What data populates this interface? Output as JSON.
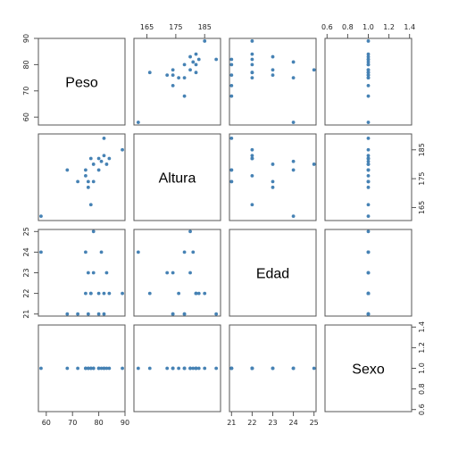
{
  "chart_data": {
    "type": "scatter",
    "subtype": "scatterplot-matrix",
    "point_color": "#4682b4",
    "variables": [
      {
        "name": "Peso",
        "range": [
          57,
          90
        ],
        "ticks": [
          60,
          70,
          80,
          90
        ],
        "tick_labels": [
          "60",
          "70",
          "80",
          "90"
        ]
      },
      {
        "name": "Altura",
        "range": [
          160.5,
          190.5
        ],
        "ticks": [
          165,
          175,
          185
        ],
        "tick_labels": [
          "165",
          "175",
          "185"
        ]
      },
      {
        "name": "Edad",
        "range": [
          20.9,
          25.1
        ],
        "ticks": [
          21,
          22,
          23,
          24,
          25
        ],
        "tick_labels": [
          "21",
          "22",
          "23",
          "24",
          "25"
        ]
      },
      {
        "name": "Sexo",
        "range": [
          0.58,
          1.42
        ],
        "ticks": [
          0.6,
          0.8,
          1.0,
          1.2,
          1.4
        ],
        "tick_labels": [
          "0.6",
          "0.8",
          "1.0",
          "1.2",
          "1.4"
        ]
      }
    ],
    "observations": [
      {
        "Peso": 58,
        "Altura": 162,
        "Edad": 24,
        "Sexo": 1
      },
      {
        "Peso": 68,
        "Altura": 178,
        "Edad": 21,
        "Sexo": 1
      },
      {
        "Peso": 72,
        "Altura": 174,
        "Edad": 21,
        "Sexo": 1
      },
      {
        "Peso": 75,
        "Altura": 176,
        "Edad": 22,
        "Sexo": 1
      },
      {
        "Peso": 75,
        "Altura": 178,
        "Edad": 24,
        "Sexo": 1
      },
      {
        "Peso": 76,
        "Altura": 172,
        "Edad": 23,
        "Sexo": 1
      },
      {
        "Peso": 76,
        "Altura": 174,
        "Edad": 21,
        "Sexo": 1
      },
      {
        "Peso": 77,
        "Altura": 166,
        "Edad": 22,
        "Sexo": 1
      },
      {
        "Peso": 77,
        "Altura": 182,
        "Edad": 22,
        "Sexo": 1
      },
      {
        "Peso": 78,
        "Altura": 180,
        "Edad": 25,
        "Sexo": 1
      },
      {
        "Peso": 78,
        "Altura": 174,
        "Edad": 23,
        "Sexo": 1
      },
      {
        "Peso": 80,
        "Altura": 182,
        "Edad": 22,
        "Sexo": 1
      },
      {
        "Peso": 80,
        "Altura": 178,
        "Edad": 21,
        "Sexo": 1
      },
      {
        "Peso": 81,
        "Altura": 181,
        "Edad": 24,
        "Sexo": 1
      },
      {
        "Peso": 82,
        "Altura": 183,
        "Edad": 22,
        "Sexo": 1
      },
      {
        "Peso": 82,
        "Altura": 189,
        "Edad": 21,
        "Sexo": 1
      },
      {
        "Peso": 83,
        "Altura": 180,
        "Edad": 23,
        "Sexo": 1
      },
      {
        "Peso": 84,
        "Altura": 182,
        "Edad": 22,
        "Sexo": 1
      },
      {
        "Peso": 89,
        "Altura": 185,
        "Edad": 22,
        "Sexo": 1
      }
    ]
  }
}
